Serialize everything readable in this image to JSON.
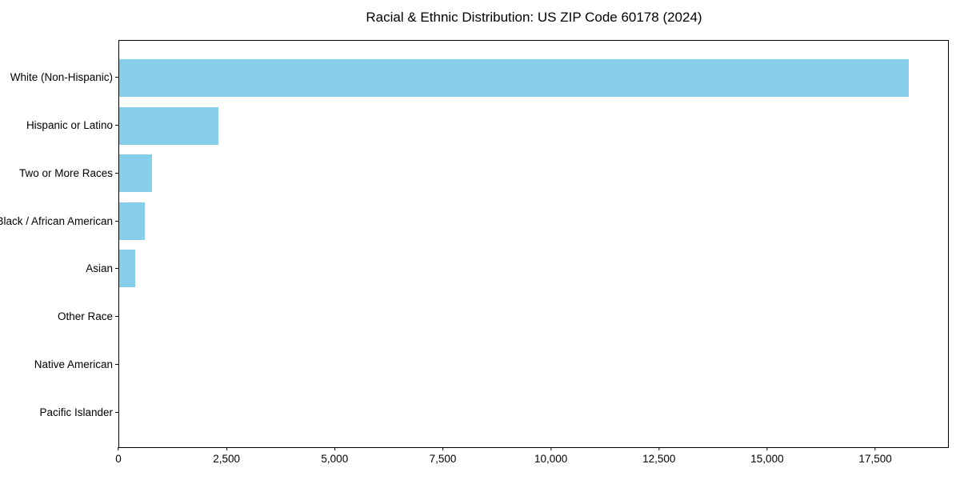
{
  "title": "Racial & Ethnic Distribution: US ZIP Code 60178 (2024)",
  "colors": {
    "bar": "#87CEEB",
    "axis": "#000000",
    "background": "#FFFFFF",
    "text": "#000000"
  },
  "chart_data": {
    "type": "bar",
    "orientation": "horizontal",
    "title": "Racial & Ethnic Distribution: US ZIP Code 60178 (2024)",
    "categories": [
      "White (Non-Hispanic)",
      "Hispanic or Latino",
      "Two or More Races",
      "Black / African American",
      "Asian",
      "Other Race",
      "Native American",
      "Pacific Islander"
    ],
    "values": [
      18300,
      2290,
      760,
      590,
      370,
      0,
      0,
      0
    ],
    "xlabel": "",
    "ylabel": "",
    "xlim": [
      0,
      19200
    ],
    "xticks": [
      0,
      2500,
      5000,
      7500,
      10000,
      12500,
      15000,
      17500
    ],
    "xtick_labels": [
      "0",
      "2,500",
      "5,000",
      "7,500",
      "10,000",
      "12,500",
      "15,000",
      "17,500"
    ],
    "grid": false,
    "legend": null,
    "bar_color": "#87CEEB"
  }
}
